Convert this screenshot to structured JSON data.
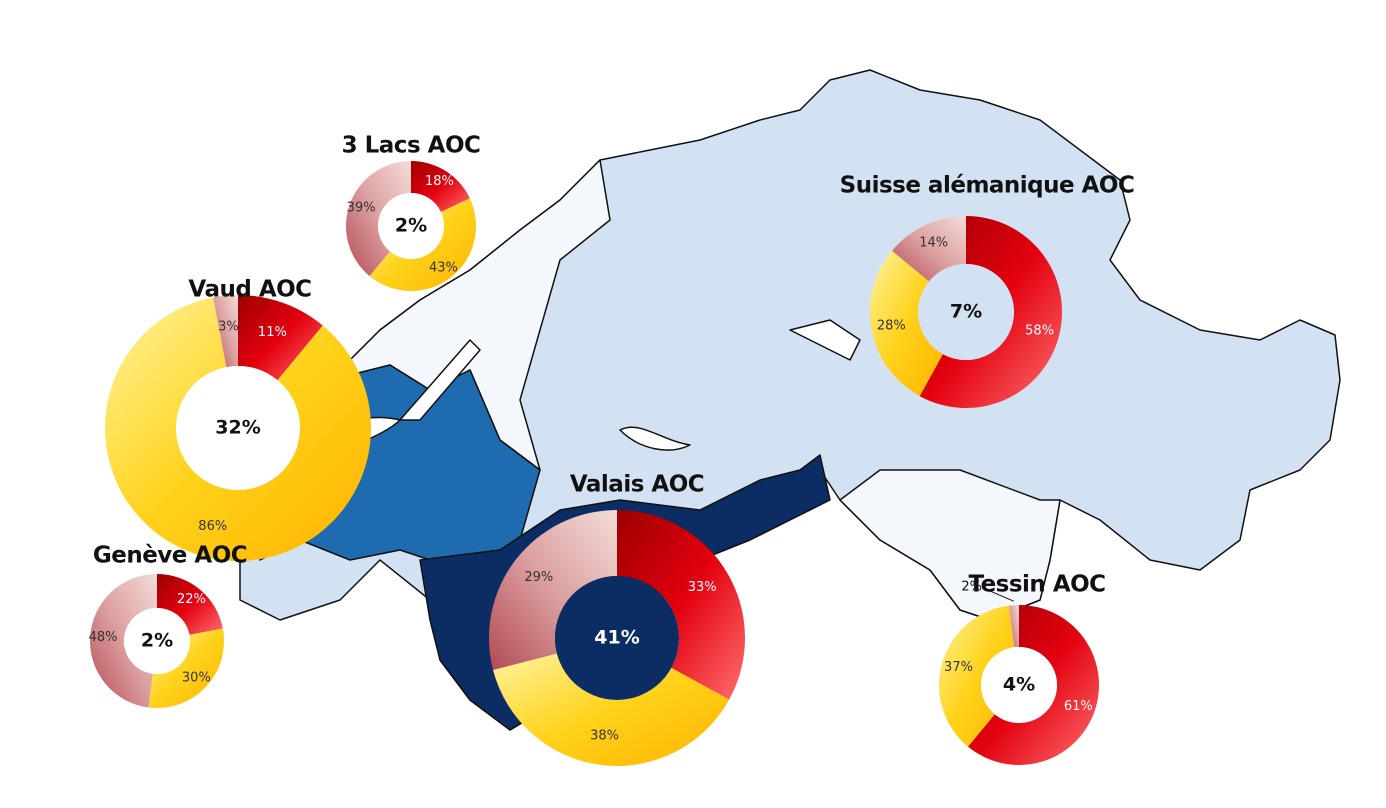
{
  "regions": [
    {
      "name": "3 Lacs AOC",
      "share": 2,
      "share_label": "2%",
      "segments": [
        {
          "value": 18,
          "label": "18%"
        },
        {
          "value": 43,
          "label": "43%"
        },
        {
          "value": 39,
          "label": "39%"
        }
      ]
    },
    {
      "name": "Vaud AOC",
      "share": 32,
      "share_label": "32%",
      "segments": [
        {
          "value": 11,
          "label": "11%"
        },
        {
          "value": 86,
          "label": "86%"
        },
        {
          "value": 3,
          "label": "3%"
        }
      ]
    },
    {
      "name": "Genève AOC",
      "share": 2,
      "share_label": "2%",
      "segments": [
        {
          "value": 22,
          "label": "22%"
        },
        {
          "value": 30,
          "label": "30%"
        },
        {
          "value": 48,
          "label": "48%"
        }
      ]
    },
    {
      "name": "Suisse alémanique AOC",
      "share": 7,
      "share_label": "7%",
      "segments": [
        {
          "value": 58,
          "label": "58%"
        },
        {
          "value": 28,
          "label": "28%"
        },
        {
          "value": 14,
          "label": "14%"
        }
      ]
    },
    {
      "name": "Valais AOC",
      "share": 41,
      "share_label": "41%",
      "segments": [
        {
          "value": 33,
          "label": "33%"
        },
        {
          "value": 38,
          "label": "38%"
        },
        {
          "value": 29,
          "label": "29%"
        }
      ]
    },
    {
      "name": "Tessin AOC",
      "share": 4,
      "share_label": "4%",
      "segments": [
        {
          "value": 61,
          "label": "61%"
        },
        {
          "value": 37,
          "label": "37%"
        },
        {
          "value": 2,
          "label": "2%"
        }
      ]
    }
  ],
  "segment_colors": [
    "#e3000f",
    "#ffcc00",
    "#d9a3a3"
  ]
}
